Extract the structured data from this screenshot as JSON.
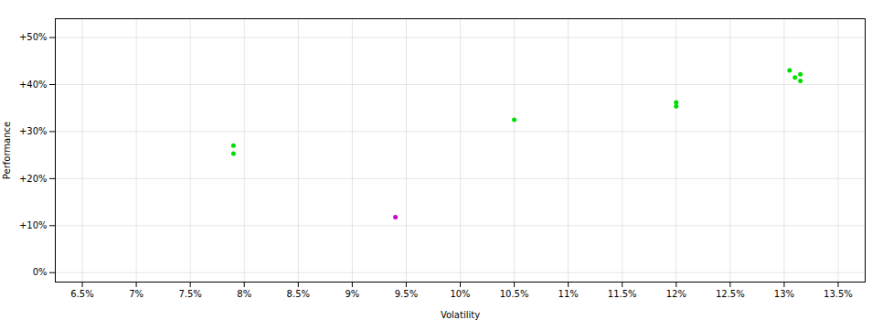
{
  "chart_data": {
    "type": "scatter",
    "xlabel": "Volatility",
    "ylabel": "Performance",
    "xlim": [
      0.0625,
      0.1375
    ],
    "ylim": [
      -0.02,
      0.54
    ],
    "xticks": [
      {
        "value": 0.065,
        "label": "6.5%"
      },
      {
        "value": 0.07,
        "label": "7%"
      },
      {
        "value": 0.075,
        "label": "7.5%"
      },
      {
        "value": 0.08,
        "label": "8%"
      },
      {
        "value": 0.085,
        "label": "8.5%"
      },
      {
        "value": 0.09,
        "label": "9%"
      },
      {
        "value": 0.095,
        "label": "9.5%"
      },
      {
        "value": 0.1,
        "label": "10%"
      },
      {
        "value": 0.105,
        "label": "10.5%"
      },
      {
        "value": 0.11,
        "label": "11%"
      },
      {
        "value": 0.115,
        "label": "11.5%"
      },
      {
        "value": 0.12,
        "label": "12%"
      },
      {
        "value": 0.125,
        "label": "12.5%"
      },
      {
        "value": 0.13,
        "label": "13%"
      },
      {
        "value": 0.135,
        "label": "13.5%"
      }
    ],
    "yticks": [
      {
        "value": 0.0,
        "label": "0%"
      },
      {
        "value": 0.1,
        "label": "+10%"
      },
      {
        "value": 0.2,
        "label": "+20%"
      },
      {
        "value": 0.3,
        "label": "+30%"
      },
      {
        "value": 0.4,
        "label": "+40%"
      },
      {
        "value": 0.5,
        "label": "+50%"
      }
    ],
    "grid": true,
    "series": [
      {
        "color": "#00dd00",
        "x": [
          0.079,
          0.079,
          0.105,
          0.12,
          0.12,
          0.1305,
          0.131,
          0.1315,
          0.1315
        ],
        "values": [
          0.27,
          0.253,
          0.325,
          0.362,
          0.354,
          0.43,
          0.415,
          0.408,
          0.422
        ]
      },
      {
        "color": "#cc00cc",
        "x": [
          0.094
        ],
        "values": [
          0.118
        ]
      }
    ]
  }
}
